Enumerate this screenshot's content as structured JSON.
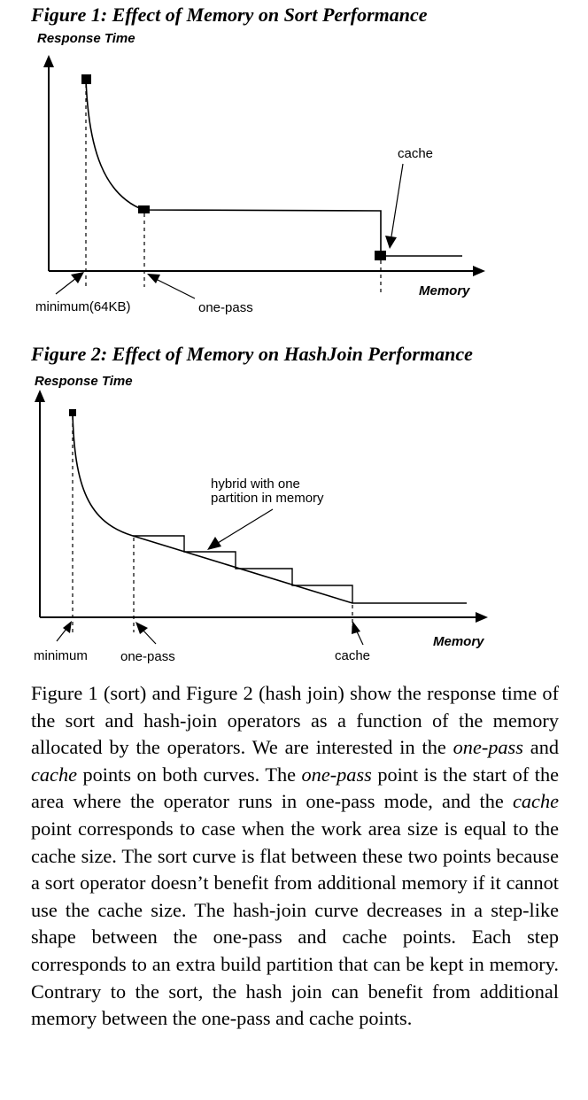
{
  "figure1": {
    "caption": "Figure 1: Effect of Memory on Sort Performance",
    "y_axis_title": "Response Time",
    "x_axis_title": "Memory",
    "annotations": {
      "cache": "cache",
      "minimum": "minimum(64KB)",
      "one_pass": "one-pass"
    }
  },
  "figure2": {
    "caption": "Figure 2: Effect of Memory on HashJoin Performance",
    "y_axis_title": "Response Time",
    "x_axis_title": "Memory",
    "annotations": {
      "hybrid_line1": "hybrid with one",
      "hybrid_line2": "partition in memory",
      "minimum": "minimum",
      "one_pass": "one-pass",
      "cache": "cache"
    }
  },
  "paragraph": {
    "p1": "Figure 1 (sort) and Figure 2 (hash join) show the response time of the sort and hash-join operators as a function of the memory allocated by the operators. We are interested in the ",
    "e1": "one-pass",
    "p2": " and ",
    "e2": "cache",
    "p3": " points on both curves. The ",
    "e3": "one-pass",
    "p4": " point is the start of the area where the operator runs in one-pass mode, and the ",
    "e4": "cache",
    "p5": " point corresponds to case when the work area size is equal to the cache size. The sort curve is flat between these two points because a sort operator doesn’t benefit from additional memory if it cannot use the cache size. The hash-join curve decreases in a step-like shape between the one-pass and cache points. Each step corresponds to an extra build partition that can be kept in memory. Contrary to the sort, the hash join can benefit from additional memory between the one-pass and cache points."
  }
}
